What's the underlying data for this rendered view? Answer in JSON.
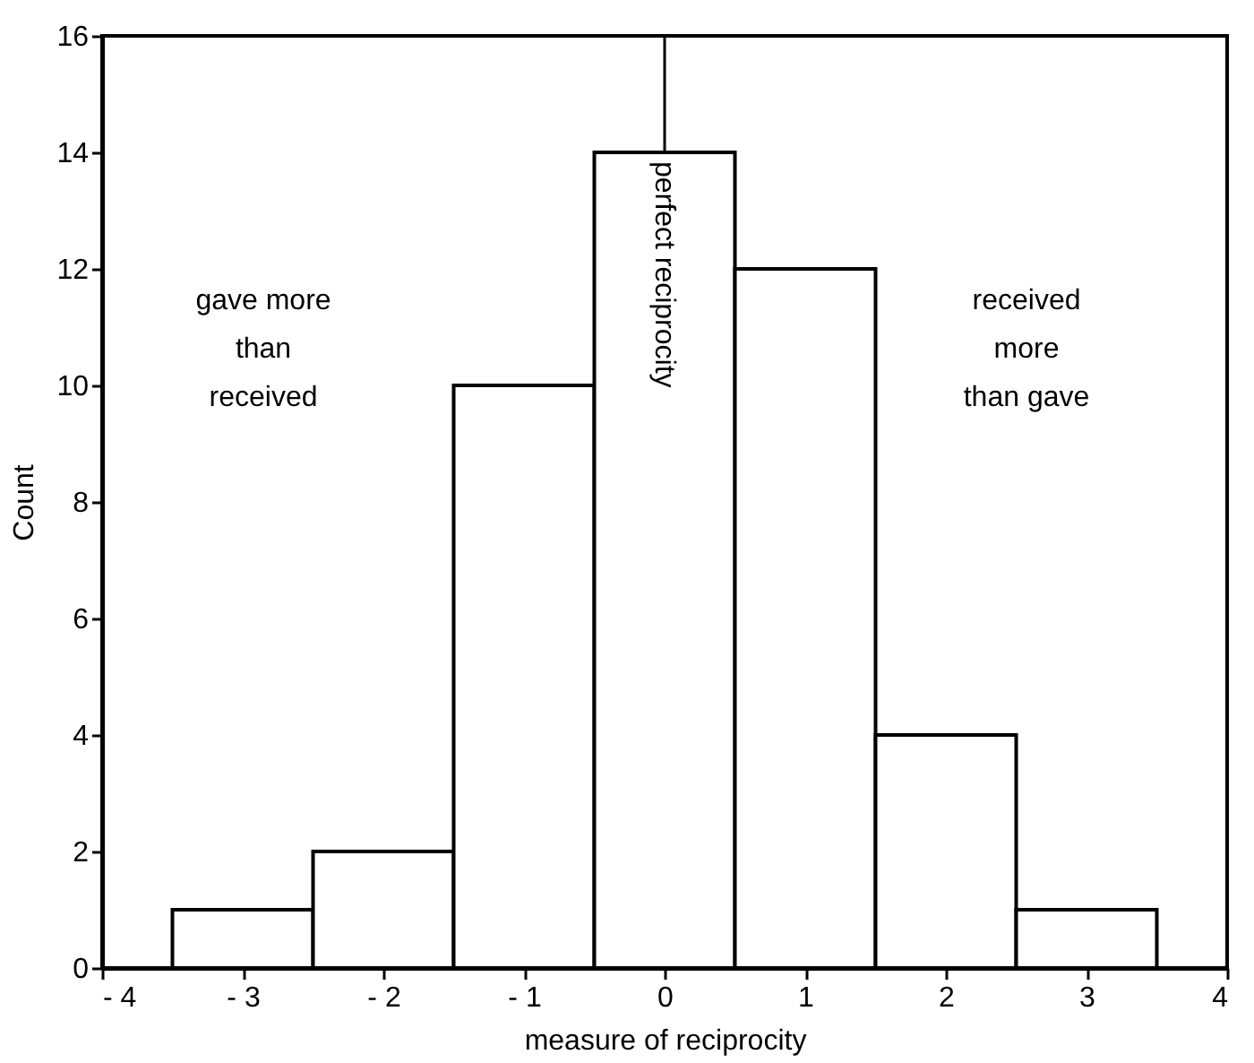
{
  "chart_data": {
    "type": "histogram",
    "xlabel": "measure of reciprocity",
    "ylabel": "Count",
    "bins": [
      -3.5,
      -2.5,
      -1.5,
      -0.5,
      0.5,
      1.5,
      2.5,
      3.5
    ],
    "values": [
      1,
      2,
      10,
      14,
      12,
      4,
      1
    ],
    "color": "#ffffff",
    "xlim": [
      -4,
      4
    ],
    "xticks": [
      {
        "value": -4,
        "label": "- 4"
      },
      {
        "value": -3,
        "label": "- 3"
      },
      {
        "value": -2,
        "label": "- 2"
      },
      {
        "value": -1,
        "label": "- 1"
      },
      0,
      1,
      2,
      3,
      4
    ],
    "ylim": [
      0,
      16
    ],
    "yticks": [
      0,
      2,
      4,
      6,
      8,
      10,
      12,
      14,
      16
    ],
    "grid": false,
    "ref_lines": [
      {
        "axis": "x",
        "value": 0,
        "label": "perfect reciprocity",
        "color": "#000000"
      }
    ],
    "annotations": [
      "gave more\nthan\nreceived",
      "received\nmore\nthan gave"
    ]
  }
}
